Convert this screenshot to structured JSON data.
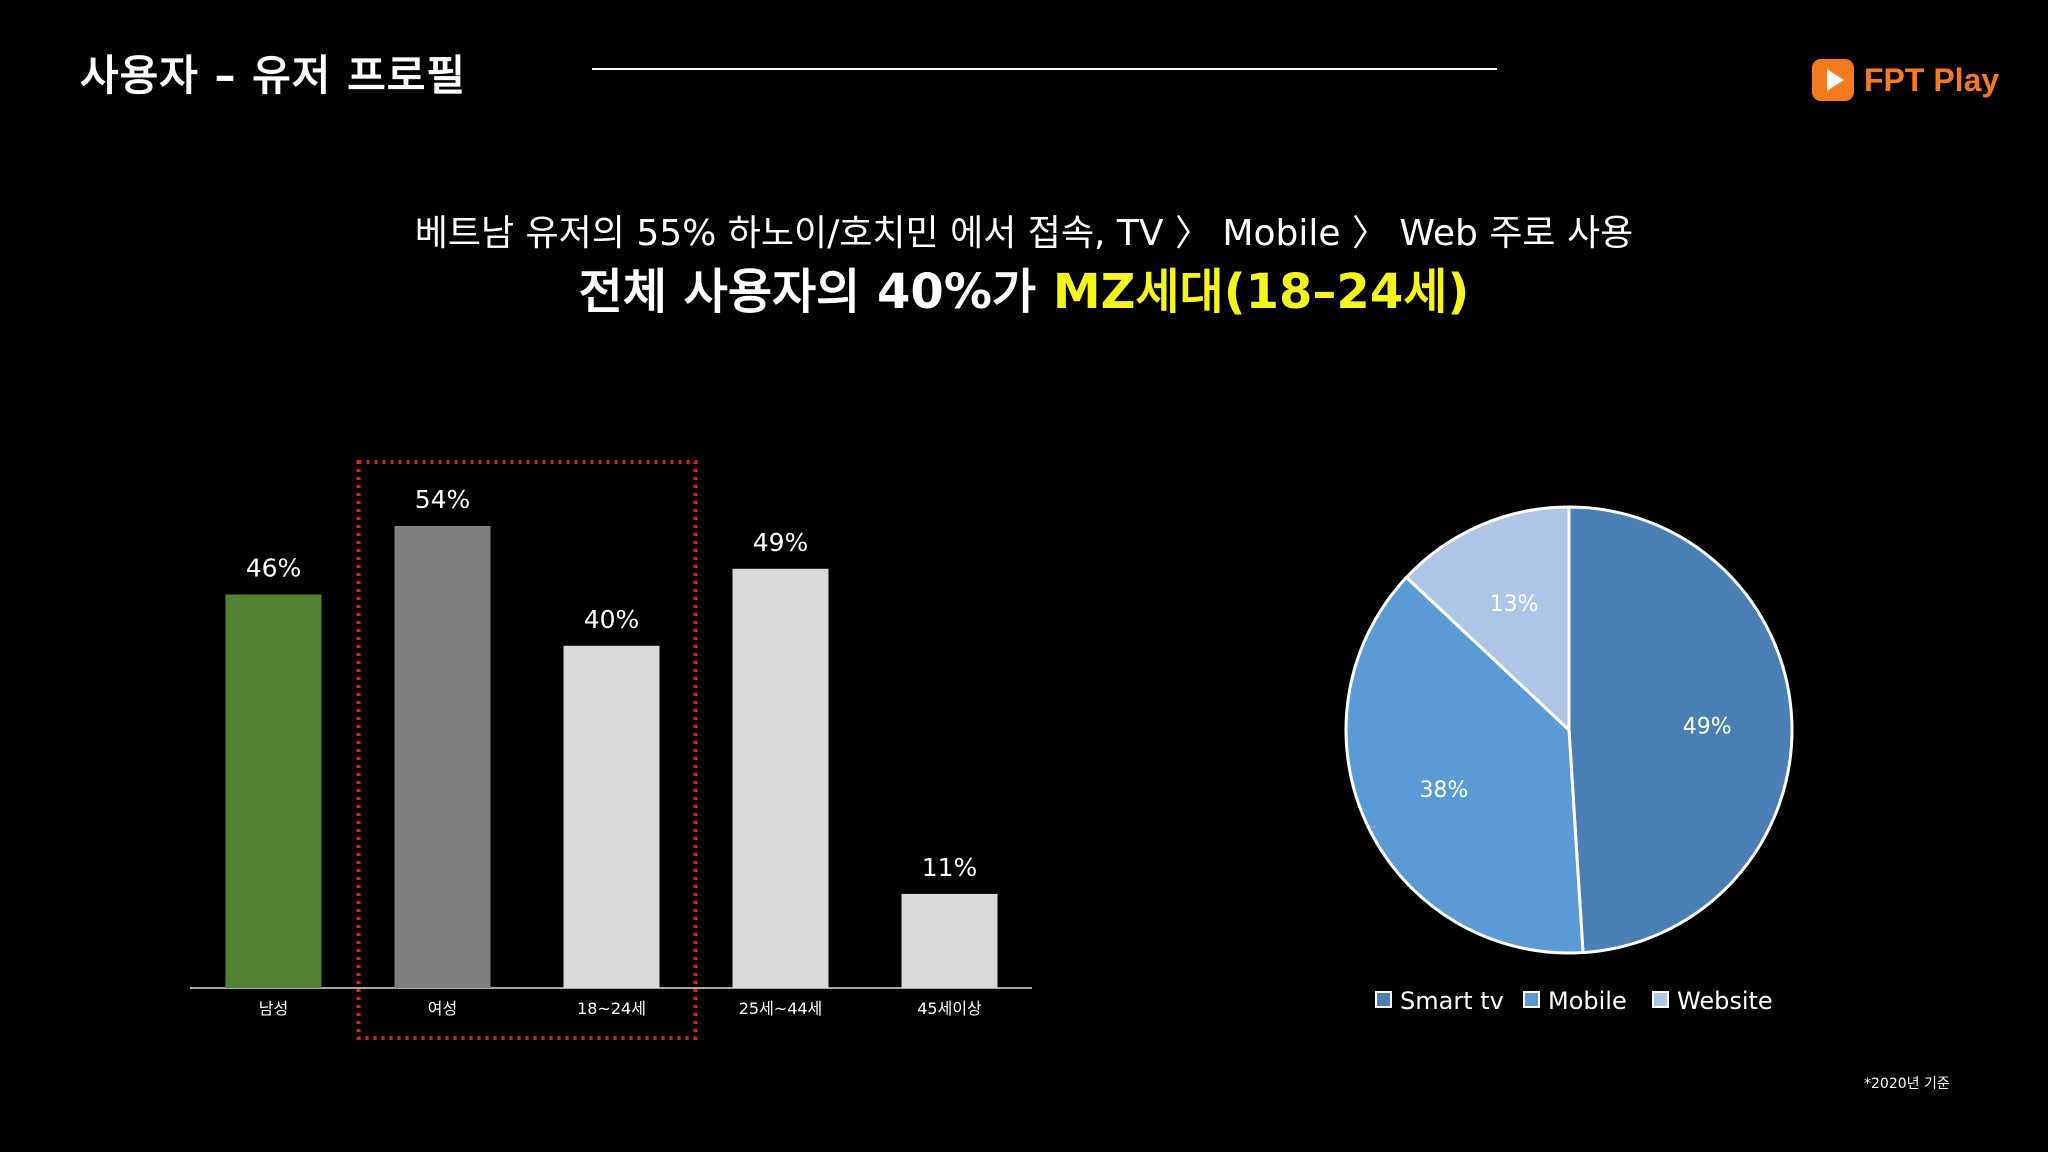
{
  "slide": {
    "title": "사용자 – 유저 프로필",
    "brand": "FPT Play",
    "headline_line1": "베트남 유저의 55% 하노이/호치민 에서 접속, TV 〉 Mobile 〉 Web 주로 사용",
    "headline_line2_prefix": "전체 사용자의 40%가 ",
    "headline_line2_highlight": "MZ세대(18–24세)",
    "footnote": "*2020년 기준"
  },
  "colors": {
    "background": "#000000",
    "brand_orange": "#f47b20",
    "highlight_yellow": "#f5f51c",
    "dotted_box": "#e0201b",
    "bar_male": "#548235",
    "bar_female": "#7f7f7f",
    "bar_age": "#d9d9d9",
    "axis": "#a6a6a6",
    "pie_edge": "#ffffff"
  },
  "chart_data": [
    {
      "type": "bar",
      "categories": [
        "남성",
        "여성",
        "18~24세",
        "25세~44세",
        "45세이상"
      ],
      "values": [
        46,
        54,
        40,
        49,
        11
      ],
      "value_labels": [
        "46%",
        "54%",
        "40%",
        "49%",
        "11%"
      ],
      "bar_colors": [
        "#548235",
        "#7f7f7f",
        "#d9d9d9",
        "#d9d9d9",
        "#d9d9d9"
      ],
      "highlighted_categories": [
        "여성",
        "18~24세"
      ],
      "ylim": [
        0,
        54
      ],
      "grid": false
    },
    {
      "type": "pie",
      "labels": [
        "Smart tv",
        "Mobile",
        "Website"
      ],
      "values": [
        49,
        38,
        13
      ],
      "value_labels": [
        "49%",
        "38%",
        "13%"
      ],
      "colors": [
        "#4a7fb5",
        "#5b9bd5",
        "#adc5e7"
      ],
      "legend_position": "bottom",
      "start": "12 o'clock, clockwise"
    }
  ]
}
